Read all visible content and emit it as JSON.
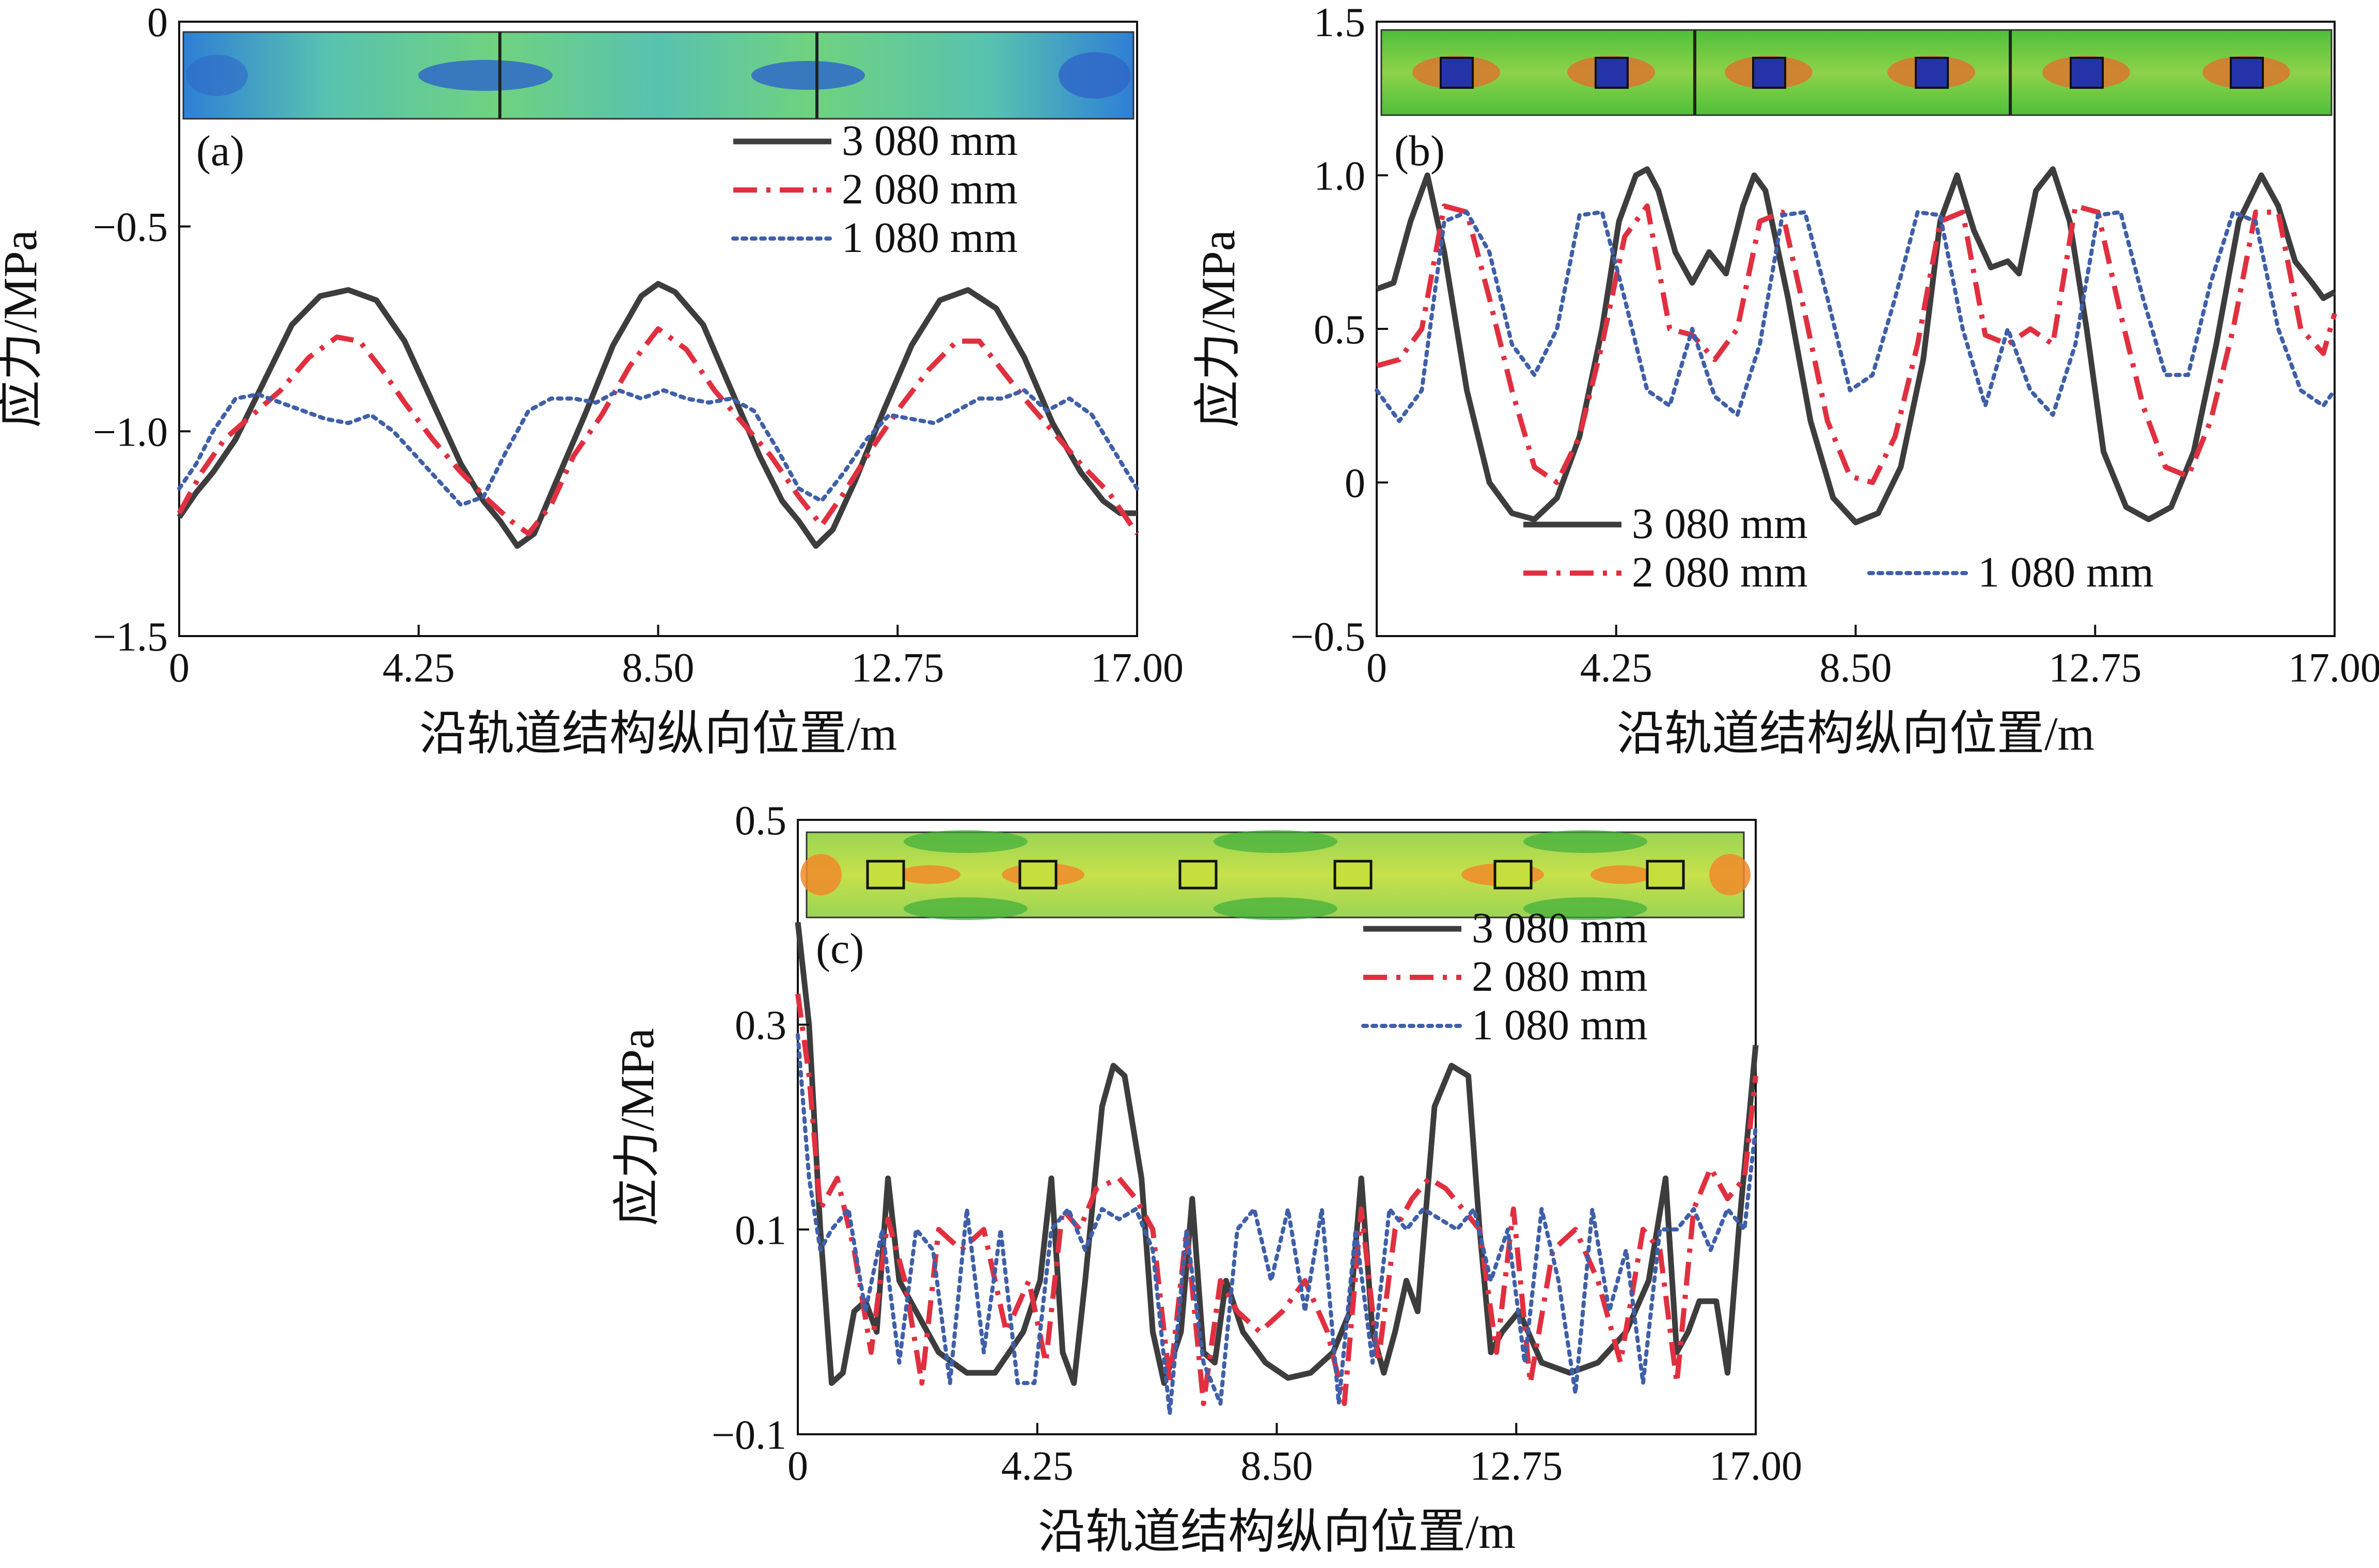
{
  "figure": {
    "colors": {
      "s3080": "#3d3d3d",
      "s2080": "#e03040",
      "s1080": "#3f5fa8",
      "axis": "#111111"
    },
    "icons": [
      "contour-strip-a",
      "contour-strip-b",
      "contour-strip-c"
    ]
  },
  "chart_data": [
    {
      "type": "line",
      "panel": "(a)",
      "xlabel": "沿轨道结构纵向位置/m",
      "ylabel": "应力/MPa",
      "xlim": [
        0,
        17.0
      ],
      "ylim": [
        -1.5,
        0
      ],
      "xticks": [
        "0",
        "4.25",
        "8.50",
        "12.75",
        "17.00"
      ],
      "xtick_values": [
        0,
        4.25,
        8.5,
        12.75,
        17.0
      ],
      "yticks": [
        "0",
        "−0.5",
        "−1.0",
        "−1.5"
      ],
      "ytick_values": [
        0,
        -0.5,
        -1.0,
        -1.5
      ],
      "legend_position": "top-right",
      "series": [
        {
          "name": "3 080 mm",
          "style": "solid",
          "color": "#3d3d3d",
          "x": [
            0,
            0.3,
            0.6,
            1.0,
            1.5,
            2.0,
            2.5,
            3.0,
            3.5,
            4.0,
            4.5,
            5.0,
            5.4,
            5.7,
            6.0,
            6.3,
            6.7,
            7.2,
            7.7,
            8.2,
            8.5,
            8.8,
            9.3,
            9.8,
            10.3,
            10.7,
            11.0,
            11.3,
            11.6,
            12.0,
            12.5,
            13.0,
            13.5,
            14.0,
            14.5,
            15.0,
            15.5,
            16.0,
            16.4,
            16.7,
            17.0
          ],
          "y": [
            -1.21,
            -1.15,
            -1.1,
            -1.02,
            -0.88,
            -0.74,
            -0.67,
            -0.655,
            -0.68,
            -0.78,
            -0.93,
            -1.08,
            -1.17,
            -1.22,
            -1.28,
            -1.25,
            -1.12,
            -0.96,
            -0.79,
            -0.67,
            -0.64,
            -0.66,
            -0.74,
            -0.9,
            -1.06,
            -1.17,
            -1.22,
            -1.28,
            -1.24,
            -1.12,
            -0.95,
            -0.79,
            -0.68,
            -0.655,
            -0.7,
            -0.82,
            -0.98,
            -1.1,
            -1.17,
            -1.2,
            -1.2
          ]
        },
        {
          "name": "2 080 mm",
          "style": "dashdot",
          "color": "#e03040",
          "x": [
            0,
            0.4,
            0.8,
            1.3,
            1.8,
            2.3,
            2.8,
            3.2,
            3.6,
            4.0,
            4.5,
            5.0,
            5.5,
            5.9,
            6.2,
            6.6,
            7.0,
            7.5,
            8.0,
            8.5,
            9.0,
            9.5,
            10.0,
            10.5,
            11.0,
            11.4,
            11.8,
            12.3,
            12.8,
            13.3,
            13.8,
            14.2,
            14.6,
            15.0,
            15.5,
            16.0,
            16.5,
            17.0
          ],
          "y": [
            -1.2,
            -1.1,
            -1.02,
            -0.96,
            -0.9,
            -0.82,
            -0.77,
            -0.78,
            -0.85,
            -0.93,
            -1.02,
            -1.1,
            -1.17,
            -1.22,
            -1.25,
            -1.18,
            -1.06,
            -0.96,
            -0.84,
            -0.75,
            -0.8,
            -0.9,
            -0.98,
            -1.06,
            -1.16,
            -1.23,
            -1.15,
            -1.04,
            -0.94,
            -0.85,
            -0.78,
            -0.78,
            -0.85,
            -0.92,
            -1.0,
            -1.08,
            -1.15,
            -1.25
          ]
        },
        {
          "name": "1 080 mm",
          "style": "dotted",
          "color": "#3f5fa8",
          "x": [
            0,
            0.3,
            0.6,
            1.0,
            1.4,
            1.8,
            2.2,
            2.6,
            3.0,
            3.4,
            3.8,
            4.2,
            4.6,
            5.0,
            5.4,
            5.8,
            6.2,
            6.6,
            7.0,
            7.4,
            7.8,
            8.2,
            8.6,
            9.0,
            9.4,
            9.8,
            10.2,
            10.6,
            11.0,
            11.4,
            11.8,
            12.2,
            12.6,
            13.0,
            13.4,
            13.8,
            14.2,
            14.6,
            15.0,
            15.4,
            15.8,
            16.2,
            16.6,
            17.0
          ],
          "y": [
            -1.14,
            -1.08,
            -1.0,
            -0.92,
            -0.91,
            -0.93,
            -0.95,
            -0.97,
            -0.98,
            -0.96,
            -1.0,
            -1.06,
            -1.12,
            -1.18,
            -1.16,
            -1.05,
            -0.95,
            -0.92,
            -0.92,
            -0.93,
            -0.9,
            -0.92,
            -0.9,
            -0.92,
            -0.93,
            -0.92,
            -0.95,
            -1.04,
            -1.14,
            -1.17,
            -1.1,
            -1.02,
            -0.96,
            -0.97,
            -0.98,
            -0.95,
            -0.92,
            -0.92,
            -0.9,
            -0.95,
            -0.92,
            -0.96,
            -1.05,
            -1.14
          ]
        }
      ]
    },
    {
      "type": "line",
      "panel": "(b)",
      "xlabel": "沿轨道结构纵向位置/m",
      "ylabel": "应力/MPa",
      "xlim": [
        0,
        17.0
      ],
      "ylim": [
        -0.5,
        1.5
      ],
      "xticks": [
        "0",
        "4.25",
        "8.50",
        "12.75",
        "17.00"
      ],
      "xtick_values": [
        0,
        4.25,
        8.5,
        12.75,
        17.0
      ],
      "yticks": [
        "1.5",
        "1.0",
        "0.5",
        "0",
        "−0.5"
      ],
      "ytick_values": [
        1.5,
        1.0,
        0.5,
        0,
        -0.5
      ],
      "legend_position": "bottom-left",
      "series": [
        {
          "name": "3 080 mm",
          "style": "solid",
          "color": "#3d3d3d",
          "x": [
            0,
            0.3,
            0.6,
            0.9,
            1.2,
            1.6,
            2.0,
            2.4,
            2.8,
            3.2,
            3.6,
            4.0,
            4.3,
            4.6,
            4.8,
            5.0,
            5.3,
            5.6,
            5.9,
            6.2,
            6.5,
            6.7,
            6.9,
            7.3,
            7.7,
            8.1,
            8.5,
            8.9,
            9.3,
            9.7,
            10.0,
            10.3,
            10.6,
            10.9,
            11.2,
            11.4,
            11.7,
            12.0,
            12.3,
            12.6,
            12.9,
            13.3,
            13.7,
            14.1,
            14.5,
            14.9,
            15.3,
            15.7,
            16.0,
            16.3,
            16.6,
            16.8,
            17.0
          ],
          "y": [
            0.63,
            0.65,
            0.85,
            1.0,
            0.75,
            0.3,
            0.0,
            -0.1,
            -0.12,
            -0.05,
            0.15,
            0.5,
            0.85,
            1.0,
            1.02,
            0.95,
            0.75,
            0.65,
            0.75,
            0.68,
            0.9,
            1.0,
            0.95,
            0.6,
            0.2,
            -0.05,
            -0.13,
            -0.1,
            0.05,
            0.4,
            0.85,
            1.0,
            0.82,
            0.7,
            0.72,
            0.68,
            0.95,
            1.02,
            0.85,
            0.5,
            0.1,
            -0.08,
            -0.12,
            -0.08,
            0.1,
            0.45,
            0.85,
            1.0,
            0.9,
            0.72,
            0.65,
            0.6,
            0.62
          ]
        },
        {
          "name": "2 080 mm",
          "style": "dashdot",
          "color": "#e03040",
          "x": [
            0,
            0.4,
            0.8,
            1.2,
            1.6,
            2.0,
            2.4,
            2.8,
            3.2,
            3.6,
            4.0,
            4.4,
            4.8,
            5.2,
            5.6,
            6.0,
            6.4,
            6.8,
            7.2,
            7.6,
            8.0,
            8.4,
            8.8,
            9.2,
            9.6,
            10.0,
            10.4,
            10.8,
            11.2,
            11.6,
            12.0,
            12.4,
            12.8,
            13.2,
            13.6,
            14.0,
            14.4,
            14.8,
            15.2,
            15.6,
            16.0,
            16.4,
            16.8,
            17.0
          ],
          "y": [
            0.38,
            0.4,
            0.5,
            0.9,
            0.88,
            0.6,
            0.3,
            0.05,
            0.0,
            0.15,
            0.45,
            0.8,
            0.9,
            0.5,
            0.48,
            0.4,
            0.5,
            0.85,
            0.88,
            0.55,
            0.2,
            0.02,
            0.0,
            0.15,
            0.45,
            0.85,
            0.88,
            0.48,
            0.45,
            0.5,
            0.45,
            0.9,
            0.88,
            0.55,
            0.25,
            0.05,
            0.02,
            0.2,
            0.5,
            0.88,
            0.88,
            0.5,
            0.42,
            0.55
          ]
        },
        {
          "name": "1 080 mm",
          "style": "dotted",
          "color": "#3f5fa8",
          "x": [
            0,
            0.4,
            0.8,
            1.2,
            1.6,
            2.0,
            2.4,
            2.8,
            3.2,
            3.6,
            4.0,
            4.4,
            4.8,
            5.2,
            5.6,
            6.0,
            6.4,
            6.8,
            7.2,
            7.6,
            8.0,
            8.4,
            8.8,
            9.2,
            9.6,
            10.0,
            10.4,
            10.8,
            11.2,
            11.6,
            12.0,
            12.4,
            12.8,
            13.2,
            13.6,
            14.0,
            14.4,
            14.8,
            15.2,
            15.6,
            16.0,
            16.4,
            16.8,
            17.0
          ],
          "y": [
            0.3,
            0.2,
            0.3,
            0.85,
            0.88,
            0.75,
            0.45,
            0.35,
            0.5,
            0.87,
            0.88,
            0.6,
            0.3,
            0.25,
            0.5,
            0.28,
            0.22,
            0.45,
            0.87,
            0.88,
            0.6,
            0.3,
            0.35,
            0.6,
            0.88,
            0.87,
            0.5,
            0.25,
            0.5,
            0.3,
            0.22,
            0.45,
            0.87,
            0.88,
            0.6,
            0.35,
            0.35,
            0.65,
            0.88,
            0.85,
            0.5,
            0.3,
            0.25,
            0.3
          ]
        }
      ]
    },
    {
      "type": "line",
      "panel": "(c)",
      "xlabel": "沿轨道结构纵向位置/m",
      "ylabel": "应力/MPa",
      "xlim": [
        0,
        17.0
      ],
      "ylim": [
        -0.1,
        0.5
      ],
      "xticks": [
        "0",
        "4.25",
        "8.50",
        "12.75",
        "17.00"
      ],
      "xtick_values": [
        0,
        4.25,
        8.5,
        12.75,
        17.0
      ],
      "yticks": [
        "0.5",
        "0.3",
        "0.1",
        "−0.1"
      ],
      "ytick_values": [
        0.5,
        0.3,
        0.1,
        -0.1
      ],
      "legend_position": "top-right",
      "series": [
        {
          "name": "3 080 mm",
          "style": "solid",
          "color": "#3d3d3d",
          "x": [
            0,
            0.2,
            0.4,
            0.6,
            0.8,
            1.0,
            1.2,
            1.4,
            1.6,
            1.8,
            2.1,
            2.5,
            3.0,
            3.5,
            4.0,
            4.3,
            4.5,
            4.7,
            4.9,
            5.1,
            5.4,
            5.6,
            5.8,
            6.1,
            6.3,
            6.5,
            6.8,
            7.0,
            7.2,
            7.4,
            7.6,
            7.9,
            8.3,
            8.7,
            9.1,
            9.5,
            9.8,
            10.0,
            10.2,
            10.4,
            10.6,
            10.8,
            11.0,
            11.3,
            11.6,
            11.9,
            12.1,
            12.3,
            12.5,
            12.8,
            13.2,
            13.7,
            14.2,
            14.7,
            15.1,
            15.4,
            15.6,
            15.8,
            16.0,
            16.3,
            16.5,
            16.7,
            16.9,
            17.0
          ],
          "y": [
            0.4,
            0.3,
            0.1,
            -0.05,
            -0.04,
            0.02,
            0.03,
            0.0,
            0.15,
            0.05,
            0.02,
            -0.02,
            -0.04,
            -0.04,
            0.0,
            0.05,
            0.15,
            -0.02,
            -0.05,
            0.05,
            0.22,
            0.26,
            0.25,
            0.15,
            0.0,
            -0.05,
            0.0,
            0.13,
            -0.02,
            -0.03,
            0.05,
            0.0,
            -0.03,
            -0.045,
            -0.04,
            -0.02,
            0.02,
            0.15,
            0.0,
            -0.04,
            0.0,
            0.05,
            0.02,
            0.22,
            0.26,
            0.25,
            0.1,
            -0.02,
            0.0,
            0.02,
            -0.03,
            -0.04,
            -0.03,
            0.0,
            0.05,
            0.15,
            -0.02,
            0.0,
            0.03,
            0.03,
            -0.04,
            0.1,
            0.22,
            0.28
          ]
        },
        {
          "name": "2 080 mm",
          "style": "dashdot",
          "color": "#e03040",
          "x": [
            0,
            0.2,
            0.4,
            0.7,
            1.0,
            1.3,
            1.6,
            1.9,
            2.2,
            2.5,
            2.9,
            3.3,
            3.7,
            4.1,
            4.4,
            4.7,
            5.0,
            5.3,
            5.7,
            6.0,
            6.3,
            6.6,
            6.9,
            7.2,
            7.5,
            7.8,
            8.2,
            8.6,
            9.0,
            9.4,
            9.7,
            10.0,
            10.3,
            10.6,
            10.9,
            11.2,
            11.5,
            11.8,
            12.1,
            12.4,
            12.7,
            13.0,
            13.4,
            13.8,
            14.2,
            14.6,
            15.0,
            15.3,
            15.6,
            15.9,
            16.2,
            16.5,
            16.8,
            17.0
          ],
          "y": [
            0.33,
            0.25,
            0.12,
            0.15,
            0.08,
            -0.02,
            0.11,
            0.05,
            -0.05,
            0.1,
            0.08,
            0.1,
            0.0,
            0.05,
            -0.03,
            0.12,
            0.1,
            0.14,
            0.15,
            0.13,
            0.1,
            -0.05,
            0.1,
            -0.07,
            0.05,
            0.02,
            0.0,
            0.02,
            0.05,
            0.0,
            -0.07,
            0.12,
            -0.03,
            0.1,
            0.13,
            0.15,
            0.14,
            0.12,
            0.1,
            -0.02,
            0.12,
            -0.05,
            0.08,
            0.1,
            0.05,
            -0.03,
            0.1,
            0.08,
            -0.05,
            0.12,
            0.16,
            0.13,
            0.15,
            0.25
          ]
        },
        {
          "name": "1 080 mm",
          "style": "dotted",
          "color": "#3f5fa8",
          "x": [
            0,
            0.2,
            0.4,
            0.6,
            0.9,
            1.2,
            1.5,
            1.8,
            2.1,
            2.4,
            2.7,
            3.0,
            3.3,
            3.6,
            3.9,
            4.2,
            4.5,
            4.8,
            5.1,
            5.4,
            5.7,
            6.0,
            6.3,
            6.6,
            6.9,
            7.2,
            7.5,
            7.8,
            8.1,
            8.4,
            8.7,
            9.0,
            9.3,
            9.6,
            9.9,
            10.2,
            10.5,
            10.8,
            11.1,
            11.4,
            11.7,
            12.0,
            12.3,
            12.6,
            12.9,
            13.2,
            13.5,
            13.8,
            14.1,
            14.4,
            14.7,
            15.0,
            15.3,
            15.6,
            15.9,
            16.2,
            16.5,
            16.8,
            17.0
          ],
          "y": [
            0.29,
            0.15,
            0.08,
            0.1,
            0.12,
            0.02,
            0.1,
            -0.03,
            0.1,
            0.08,
            -0.05,
            0.12,
            -0.02,
            0.1,
            -0.05,
            -0.05,
            0.1,
            0.12,
            0.08,
            0.12,
            0.11,
            0.12,
            0.08,
            -0.08,
            0.1,
            -0.03,
            -0.07,
            0.1,
            0.12,
            0.05,
            0.12,
            0.02,
            0.12,
            -0.07,
            0.1,
            -0.03,
            0.12,
            0.1,
            0.12,
            0.11,
            0.1,
            0.12,
            0.05,
            0.1,
            -0.03,
            0.12,
            0.05,
            -0.06,
            0.12,
            0.02,
            0.08,
            -0.05,
            0.1,
            0.1,
            0.12,
            0.08,
            0.12,
            0.1,
            0.2
          ]
        }
      ]
    }
  ]
}
